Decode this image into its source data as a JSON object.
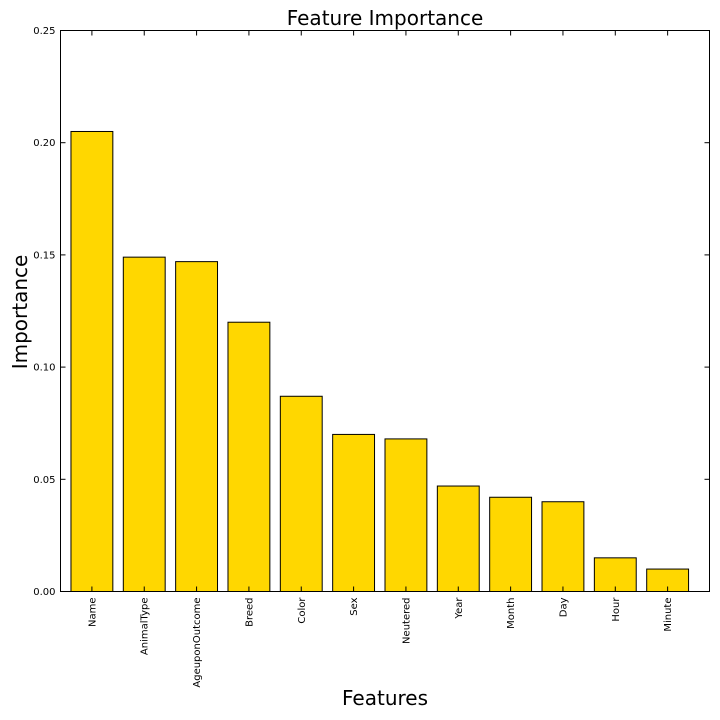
{
  "chart_data": {
    "type": "bar",
    "title": "Feature Importance",
    "xlabel": "Features",
    "ylabel": "Importance",
    "categories": [
      "Name",
      "AnimalType",
      "AgeuponOutcome",
      "Breed",
      "Color",
      "Sex",
      "Neutered",
      "Year",
      "Month",
      "Day",
      "Hour",
      "Minute"
    ],
    "values": [
      0.205,
      0.149,
      0.147,
      0.12,
      0.087,
      0.07,
      0.068,
      0.047,
      0.042,
      0.04,
      0.015,
      0.01
    ],
    "ylim": [
      0,
      0.25
    ],
    "yticks": [
      0.0,
      0.05,
      0.1,
      0.15,
      0.2,
      0.25
    ],
    "ytick_labels": [
      "0.00",
      "0.05",
      "0.10",
      "0.15",
      "0.20",
      "0.25"
    ],
    "bar_color": "#FFD700",
    "edge_color": "#000000",
    "grid": false,
    "legend": false
  }
}
